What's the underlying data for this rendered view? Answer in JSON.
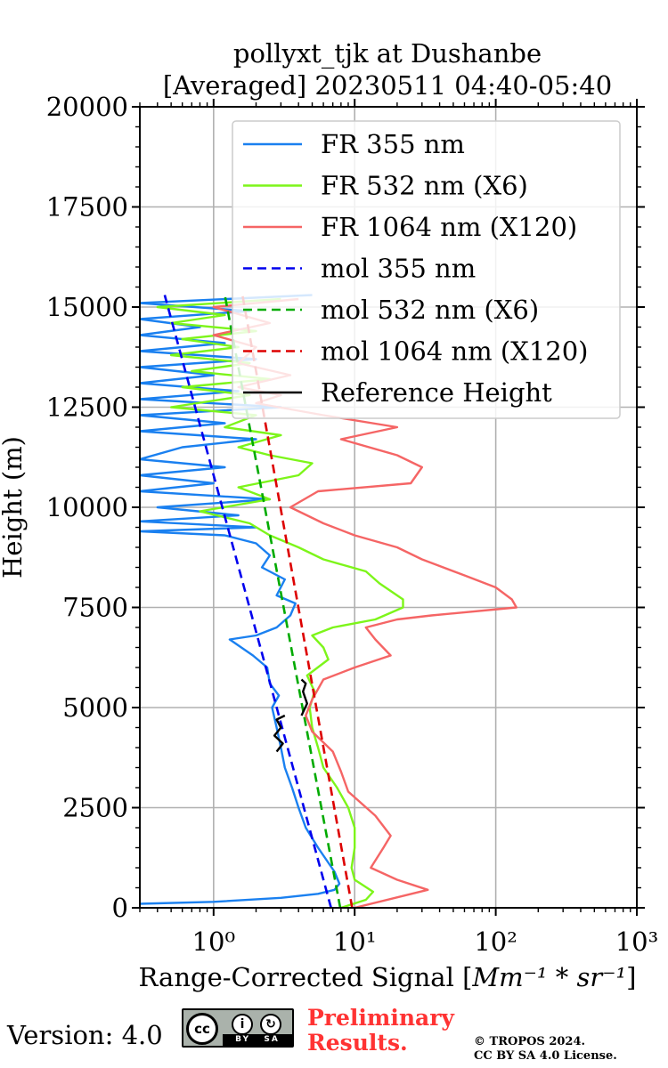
{
  "chart_data": {
    "type": "line",
    "title": [
      "pollyxt_tjk at Dushanbe",
      "[Averaged] 20230511 04:40-05:40"
    ],
    "xlabel": "Range-Corrected Signal [",
    "xlabel_units": "Mm⁻¹ * sr⁻¹",
    "xlabel_end": "]",
    "ylabel": "Height (m)",
    "xscale": "log",
    "xlim": [
      0.3,
      1000
    ],
    "ylim": [
      0,
      20000
    ],
    "grid": true,
    "legend_position": "top-right",
    "x_ticks": [
      {
        "value": 1,
        "label": "10⁰"
      },
      {
        "value": 10,
        "label": "10¹"
      },
      {
        "value": 100,
        "label": "10²"
      },
      {
        "value": 1000,
        "label": "10³"
      }
    ],
    "y_ticks": [
      {
        "value": 0,
        "label": "0"
      },
      {
        "value": 2500,
        "label": "2500"
      },
      {
        "value": 5000,
        "label": "5000"
      },
      {
        "value": 7500,
        "label": "7500"
      },
      {
        "value": 10000,
        "label": "10000"
      },
      {
        "value": 12500,
        "label": "12500"
      },
      {
        "value": 15000,
        "label": "15000"
      },
      {
        "value": 17500,
        "label": "17500"
      },
      {
        "value": 20000,
        "label": "20000"
      }
    ],
    "series": [
      {
        "name": "FR 355 nm",
        "color": "#1a80f0",
        "style": "solid",
        "points": [
          [
            0.3,
            100
          ],
          [
            1.0,
            150
          ],
          [
            3.0,
            250
          ],
          [
            5.5,
            350
          ],
          [
            7.2,
            450
          ],
          [
            7.8,
            600
          ],
          [
            7.2,
            900
          ],
          [
            5.5,
            1500
          ],
          [
            4.5,
            2000
          ],
          [
            4.0,
            2500
          ],
          [
            3.6,
            3000
          ],
          [
            3.2,
            3500
          ],
          [
            3.0,
            4000
          ],
          [
            2.8,
            4500
          ],
          [
            2.6,
            5000
          ],
          [
            2.9,
            5300
          ],
          [
            2.5,
            5600
          ],
          [
            2.4,
            6000
          ],
          [
            1.9,
            6300
          ],
          [
            1.3,
            6700
          ],
          [
            2.0,
            6800
          ],
          [
            2.8,
            7000
          ],
          [
            3.5,
            7300
          ],
          [
            3.8,
            7600
          ],
          [
            2.8,
            7800
          ],
          [
            3.2,
            8200
          ],
          [
            2.2,
            8500
          ],
          [
            2.5,
            8800
          ],
          [
            2.0,
            9100
          ],
          [
            1.2,
            9300
          ],
          [
            0.3,
            9400
          ],
          [
            2.0,
            9500
          ],
          [
            0.3,
            9650
          ],
          [
            1.5,
            9800
          ],
          [
            0.4,
            10000
          ],
          [
            2.5,
            10200
          ],
          [
            0.3,
            10400
          ],
          [
            1.0,
            10600
          ],
          [
            0.3,
            10800
          ],
          [
            1.2,
            11000
          ],
          [
            0.3,
            11200
          ],
          [
            0.6,
            11500
          ],
          [
            2.0,
            11700
          ],
          [
            0.3,
            11900
          ],
          [
            1.2,
            12100
          ],
          [
            0.3,
            12300
          ],
          [
            3.0,
            12500
          ],
          [
            0.3,
            12700
          ],
          [
            1.5,
            12900
          ],
          [
            0.3,
            13100
          ],
          [
            1.0,
            13300
          ],
          [
            0.3,
            13500
          ],
          [
            2.0,
            13700
          ],
          [
            0.3,
            13900
          ],
          [
            1.2,
            14100
          ],
          [
            0.3,
            14300
          ],
          [
            0.8,
            14500
          ],
          [
            0.3,
            14700
          ],
          [
            1.8,
            14900
          ],
          [
            0.3,
            15100
          ],
          [
            5.0,
            15300
          ]
        ]
      },
      {
        "name": "FR 532 nm (X6)",
        "color": "#7df51a",
        "style": "solid",
        "points": [
          [
            8.0,
            0
          ],
          [
            12.0,
            200
          ],
          [
            13.5,
            400
          ],
          [
            10.0,
            700
          ],
          [
            9.5,
            1000
          ],
          [
            10.0,
            1500
          ],
          [
            10.0,
            2000
          ],
          [
            9.0,
            2500
          ],
          [
            7.5,
            3000
          ],
          [
            6.0,
            3500
          ],
          [
            5.5,
            4000
          ],
          [
            5.0,
            4500
          ],
          [
            4.8,
            5000
          ],
          [
            5.2,
            5400
          ],
          [
            4.6,
            5800
          ],
          [
            6.5,
            6200
          ],
          [
            6.0,
            6500
          ],
          [
            5.0,
            6800
          ],
          [
            7.0,
            7000
          ],
          [
            14.0,
            7200
          ],
          [
            22.0,
            7500
          ],
          [
            22.0,
            7700
          ],
          [
            15.0,
            8100
          ],
          [
            12.0,
            8400
          ],
          [
            6.0,
            8700
          ],
          [
            4.0,
            9000
          ],
          [
            2.5,
            9300
          ],
          [
            1.8,
            9600
          ],
          [
            0.8,
            9900
          ],
          [
            2.5,
            10200
          ],
          [
            1.5,
            10500
          ],
          [
            4.0,
            10800
          ],
          [
            5.0,
            11100
          ],
          [
            2.5,
            11300
          ],
          [
            1.5,
            11500
          ],
          [
            3.0,
            11800
          ],
          [
            1.2,
            12000
          ],
          [
            2.0,
            12300
          ],
          [
            0.5,
            12500
          ],
          [
            1.8,
            12800
          ],
          [
            0.6,
            13000
          ],
          [
            2.5,
            13200
          ],
          [
            0.7,
            13400
          ],
          [
            1.8,
            13600
          ],
          [
            0.5,
            13800
          ],
          [
            1.5,
            14000
          ],
          [
            0.6,
            14200
          ],
          [
            2.0,
            14400
          ],
          [
            0.5,
            14600
          ],
          [
            1.2,
            14800
          ],
          [
            0.4,
            15000
          ],
          [
            3.0,
            15200
          ]
        ]
      },
      {
        "name": "FR 1064 nm (X120)",
        "color": "#f56565",
        "style": "solid",
        "points": [
          [
            10.0,
            0
          ],
          [
            33.0,
            450
          ],
          [
            20.0,
            700
          ],
          [
            13.0,
            1000
          ],
          [
            16.0,
            1500
          ],
          [
            18.0,
            1800
          ],
          [
            14.0,
            2300
          ],
          [
            9.0,
            2900
          ],
          [
            8.0,
            3400
          ],
          [
            7.0,
            3900
          ],
          [
            5.0,
            4400
          ],
          [
            4.5,
            4800
          ],
          [
            5.0,
            5200
          ],
          [
            6.0,
            5700
          ],
          [
            10.0,
            6000
          ],
          [
            18.0,
            6300
          ],
          [
            14.0,
            6700
          ],
          [
            12.0,
            7000
          ],
          [
            20.0,
            7200
          ],
          [
            35.0,
            7300
          ],
          [
            140.0,
            7500
          ],
          [
            130.0,
            7700
          ],
          [
            100.0,
            8000
          ],
          [
            60.0,
            8300
          ],
          [
            30.0,
            8700
          ],
          [
            20.0,
            9000
          ],
          [
            10.0,
            9300
          ],
          [
            6.0,
            9600
          ],
          [
            3.5,
            10000
          ],
          [
            5.5,
            10400
          ],
          [
            25.0,
            10600
          ],
          [
            30.0,
            11000
          ],
          [
            20.0,
            11300
          ],
          [
            8.0,
            11700
          ],
          [
            20.0,
            12000
          ],
          [
            6.0,
            12300
          ],
          [
            2.0,
            12600
          ],
          [
            3.0,
            12800
          ],
          [
            1.5,
            13000
          ],
          [
            3.5,
            13300
          ],
          [
            1.5,
            13600
          ],
          [
            2.0,
            14000
          ],
          [
            1.0,
            14300
          ],
          [
            2.5,
            14600
          ],
          [
            1.0,
            15000
          ],
          [
            4.0,
            15200
          ]
        ]
      },
      {
        "name": "mol 355 nm",
        "color": "#0000ee",
        "style": "dashed",
        "points": [
          [
            6.8,
            0
          ],
          [
            0.45,
            15300
          ]
        ]
      },
      {
        "name": "mol 532 nm (X6)",
        "color": "#00aa00",
        "style": "dashed",
        "points": [
          [
            7.9,
            0
          ],
          [
            1.2,
            15300
          ]
        ]
      },
      {
        "name": "mol 1064 nm (X120)",
        "color": "#dd0000",
        "style": "dashed",
        "points": [
          [
            9.6,
            0
          ],
          [
            1.6,
            15300
          ]
        ]
      },
      {
        "name": "Reference Height",
        "color": "#000000",
        "style": "solid",
        "segments": [
          [
            [
              2.8,
              3900
            ],
            [
              3.1,
              4100
            ],
            [
              2.7,
              4300
            ],
            [
              3.0,
              4500
            ],
            [
              2.8,
              4700
            ],
            [
              3.2,
              4800
            ]
          ],
          [
            [
              4.2,
              4800
            ],
            [
              4.6,
              5100
            ],
            [
              4.3,
              5400
            ],
            [
              4.5,
              5600
            ],
            [
              4.2,
              5700
            ]
          ]
        ]
      }
    ]
  },
  "footer": {
    "version": "Version: 4.0",
    "license_badge": {
      "main": "cc",
      "by": "BY",
      "sa": "SA"
    },
    "preliminary": [
      "Preliminary",
      "Results."
    ],
    "copyright": [
      "© TROPOS 2024.",
      "CC BY SA 4.0 License."
    ]
  }
}
